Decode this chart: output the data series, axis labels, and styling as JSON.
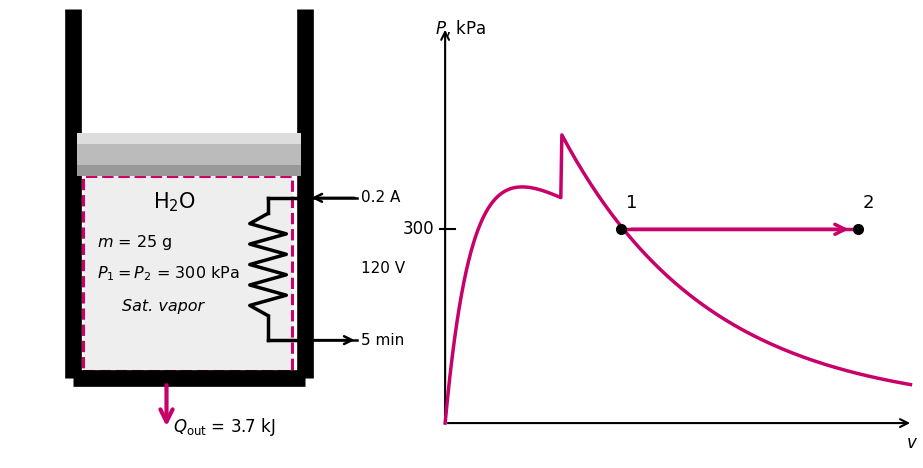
{
  "curve_color": "#C8006A",
  "container_color": "#000000",
  "piston_top_color": "#cccccc",
  "piston_mid_color": "#aaaaaa",
  "piston_bot_color": "#888888",
  "dashed_box_color": "#CC0066",
  "box_fill_color": "#eeeeee",
  "q_arrow_color_start": "#f0b0c8",
  "q_arrow_color_end": "#CC0066",
  "p_label": "300",
  "p_axis_label": "P, kPa",
  "v_axis_label": "v",
  "h2o_label": "H$_2$O",
  "m_label": "$m$ = 25 g",
  "p12_label": "$P_1 = P_2$ = 300 kPa",
  "sat_label": "Sat. vapor",
  "current_label": "0.2 A",
  "voltage_label": "120 V",
  "time_label": "5 min",
  "q_val_label": " = 3.7 kJ",
  "wall_lw": 12,
  "resistor_lw": 2.5
}
